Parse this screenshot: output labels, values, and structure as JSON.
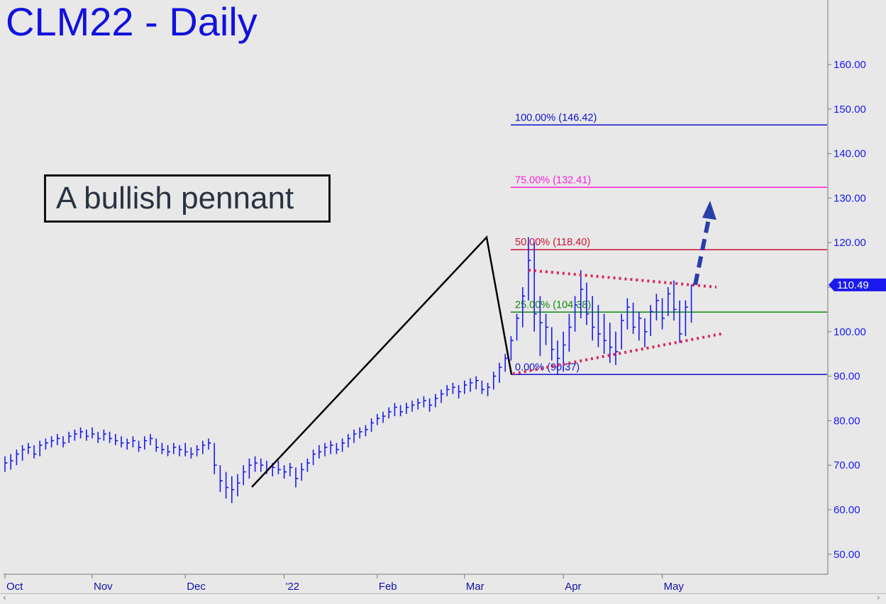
{
  "header": {
    "title": "CLM22 - Daily"
  },
  "annotation": {
    "text": "A bullish pennant"
  },
  "chart_data": {
    "type": "ohlc",
    "title": "CLM22 - Daily",
    "ylim": [
      45,
      172
    ],
    "y_ticks": [
      50,
      60,
      70,
      80,
      90,
      100,
      110,
      120,
      130,
      140,
      150,
      160
    ],
    "y_tick_labels": [
      "50.00",
      "60.00",
      "70.00",
      "80.00",
      "90.00",
      "100.00",
      "110.00",
      "120.00",
      "130.00",
      "140.00",
      "150.00",
      "160.00"
    ],
    "x_labels": [
      "Oct",
      "Nov",
      "Dec",
      "'22",
      "Feb",
      "Mar",
      "Apr",
      "May"
    ],
    "last_price": 110.49,
    "last_price_label": "110.49",
    "colors": {
      "bars": "#1a1aee",
      "price_axis": "#1a1aee",
      "background": "#e8e8e8"
    },
    "fib_levels": [
      {
        "label": "100.00% (146.42)",
        "value": 146.42,
        "color": "#1111cc"
      },
      {
        "label": "75.00% (132.41)",
        "value": 132.41,
        "color": "#ff1fd8"
      },
      {
        "label": "50.00% (118.40)",
        "value": 118.4,
        "color": "#cc1133"
      },
      {
        "label": "25.00% (104.38)",
        "value": 104.38,
        "color": "#118811"
      },
      {
        "label": "0.00% (90.37)",
        "value": 90.37,
        "color": "#1111cc"
      }
    ],
    "impulse_swing": [
      {
        "date": "Dec 20",
        "price": 65.1
      },
      {
        "date": "Mar 7",
        "price": 121.2
      },
      {
        "date": "Mar 16",
        "price": 90.37
      }
    ],
    "pennant_upper": [
      [
        113.8,
        110.0
      ]
    ],
    "pennant_lower": [
      [
        90.5,
        99.6
      ]
    ],
    "target_arrow": {
      "from": 110.5,
      "to": 127.5
    },
    "price_bars": [
      [
        72.0,
        68.5,
        70.5
      ],
      [
        72.5,
        69.0,
        71.0
      ],
      [
        73.5,
        70.0,
        72.5
      ],
      [
        74.5,
        71.0,
        73.5
      ],
      [
        75.0,
        72.5,
        74.0
      ],
      [
        74.5,
        71.5,
        72.5
      ],
      [
        75.5,
        72.0,
        74.5
      ],
      [
        76.0,
        73.5,
        75.0
      ],
      [
        76.5,
        74.0,
        75.5
      ],
      [
        77.0,
        74.5,
        76.0
      ],
      [
        76.5,
        74.0,
        75.0
      ],
      [
        77.5,
        75.0,
        76.5
      ],
      [
        78.0,
        75.5,
        77.0
      ],
      [
        78.5,
        76.0,
        77.5
      ],
      [
        78.0,
        75.5,
        76.5
      ],
      [
        78.5,
        76.0,
        77.0
      ],
      [
        77.5,
        75.0,
        76.0
      ],
      [
        78.0,
        75.5,
        77.0
      ],
      [
        77.5,
        75.0,
        76.0
      ],
      [
        77.0,
        74.5,
        75.5
      ],
      [
        76.5,
        74.0,
        75.0
      ],
      [
        76.0,
        73.5,
        75.0
      ],
      [
        76.5,
        74.0,
        75.5
      ],
      [
        75.5,
        73.0,
        74.0
      ],
      [
        76.5,
        73.5,
        75.5
      ],
      [
        77.0,
        74.5,
        76.0
      ],
      [
        76.0,
        73.0,
        74.0
      ],
      [
        75.0,
        72.5,
        73.5
      ],
      [
        74.5,
        72.0,
        73.0
      ],
      [
        75.0,
        72.5,
        74.0
      ],
      [
        74.5,
        72.0,
        73.5
      ],
      [
        75.0,
        72.0,
        73.0
      ],
      [
        74.0,
        71.5,
        72.5
      ],
      [
        74.5,
        72.0,
        73.5
      ],
      [
        75.5,
        72.5,
        74.5
      ],
      [
        76.0,
        73.5,
        75.0
      ],
      [
        75.0,
        68.0,
        70.0
      ],
      [
        70.0,
        64.0,
        66.5
      ],
      [
        68.5,
        62.5,
        65.0
      ],
      [
        67.5,
        61.5,
        64.5
      ],
      [
        68.0,
        63.0,
        66.0
      ],
      [
        70.0,
        65.5,
        68.5
      ],
      [
        71.5,
        67.0,
        70.0
      ],
      [
        72.0,
        68.5,
        70.5
      ],
      [
        71.5,
        68.5,
        70.0
      ],
      [
        71.0,
        68.0,
        69.0
      ],
      [
        70.5,
        67.5,
        69.5
      ],
      [
        71.0,
        68.0,
        69.0
      ],
      [
        70.0,
        67.0,
        68.5
      ],
      [
        70.5,
        67.5,
        69.5
      ],
      [
        69.5,
        65.0,
        67.0
      ],
      [
        70.5,
        66.5,
        69.0
      ],
      [
        71.5,
        68.5,
        70.5
      ],
      [
        73.5,
        70.0,
        72.5
      ],
      [
        74.5,
        71.5,
        73.0
      ],
      [
        75.0,
        72.0,
        74.0
      ],
      [
        75.5,
        72.5,
        74.5
      ],
      [
        75.0,
        72.5,
        73.5
      ],
      [
        76.0,
        73.0,
        75.0
      ],
      [
        77.0,
        74.0,
        76.0
      ],
      [
        78.0,
        75.0,
        77.0
      ],
      [
        78.5,
        76.0,
        77.5
      ],
      [
        79.0,
        76.5,
        78.0
      ],
      [
        80.5,
        77.5,
        79.5
      ],
      [
        81.5,
        79.0,
        80.5
      ],
      [
        82.0,
        79.5,
        81.0
      ],
      [
        83.0,
        80.5,
        82.0
      ],
      [
        84.0,
        81.0,
        83.0
      ],
      [
        83.5,
        81.0,
        82.0
      ],
      [
        84.0,
        81.5,
        83.0
      ],
      [
        84.5,
        82.0,
        83.5
      ],
      [
        85.0,
        82.5,
        84.0
      ],
      [
        85.5,
        83.0,
        84.5
      ],
      [
        85.0,
        82.0,
        83.5
      ],
      [
        86.0,
        83.0,
        85.0
      ],
      [
        87.0,
        84.0,
        86.0
      ],
      [
        88.0,
        85.5,
        87.0
      ],
      [
        88.5,
        86.0,
        87.5
      ],
      [
        88.0,
        85.0,
        86.5
      ],
      [
        89.0,
        86.0,
        88.0
      ],
      [
        89.5,
        86.5,
        88.5
      ],
      [
        90.0,
        87.0,
        89.0
      ],
      [
        89.0,
        86.0,
        87.0
      ],
      [
        88.5,
        85.5,
        87.5
      ],
      [
        91.0,
        87.0,
        90.0
      ],
      [
        93.0,
        88.5,
        92.0
      ],
      [
        95.0,
        91.0,
        94.0
      ],
      [
        99.0,
        93.5,
        98.0
      ],
      [
        104.0,
        98.0,
        103.0
      ],
      [
        110.0,
        101.0,
        108.0
      ],
      [
        121.2,
        107.0,
        116.0
      ],
      [
        120.0,
        100.0,
        104.0
      ],
      [
        108.0,
        94.5,
        102.0
      ],
      [
        104.0,
        97.0,
        101.0
      ],
      [
        101.0,
        93.5,
        96.0
      ],
      [
        98.0,
        90.37,
        94.0
      ],
      [
        100.0,
        91.0,
        97.0
      ],
      [
        104.0,
        95.5,
        101.0
      ],
      [
        108.0,
        100.0,
        106.0
      ],
      [
        113.8,
        103.0,
        109.5
      ],
      [
        111.0,
        101.5,
        104.0
      ],
      [
        108.0,
        98.0,
        101.0
      ],
      [
        106.0,
        96.5,
        99.5
      ],
      [
        104.0,
        95.0,
        98.0
      ],
      [
        102.0,
        93.0,
        96.5
      ],
      [
        100.0,
        92.5,
        95.5
      ],
      [
        104.0,
        96.0,
        102.5
      ],
      [
        107.5,
        100.5,
        105.5
      ],
      [
        106.5,
        99.5,
        101.0
      ],
      [
        104.5,
        98.0,
        103.0
      ],
      [
        103.0,
        96.5,
        100.0
      ],
      [
        106.0,
        99.0,
        104.5
      ],
      [
        108.5,
        102.5,
        107.0
      ],
      [
        107.5,
        100.5,
        103.0
      ],
      [
        110.0,
        103.5,
        108.5
      ],
      [
        111.5,
        102.5,
        105.0
      ],
      [
        107.0,
        97.5,
        99.5
      ],
      [
        107.0,
        99.0,
        105.5
      ],
      [
        110.49,
        102.0,
        110.49
      ]
    ]
  }
}
